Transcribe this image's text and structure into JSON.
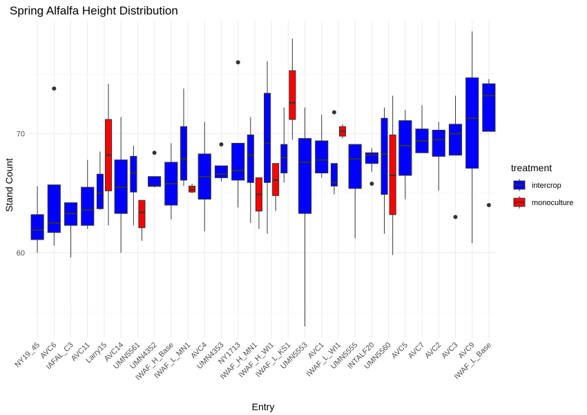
{
  "chart_data": {
    "type": "boxplot",
    "title": "Spring Alfalfa Height Distribution",
    "xlabel": "Entry",
    "ylabel": "Stand Count",
    "ylim": [
      52.8,
      79.5
    ],
    "yticks": [
      60,
      70
    ],
    "grid": true,
    "legend": {
      "title": "treatment",
      "position": "right",
      "entries": [
        {
          "name": "intercrop",
          "color": "#0000ff"
        },
        {
          "name": "monoculture",
          "color": "#ff0000"
        }
      ]
    },
    "categories": [
      "NY19_45",
      "AVC6",
      "IAFAL_C3",
      "AVC11",
      "Larry15",
      "AVC14",
      "UMN5561",
      "UMN4352",
      "IWAF_H_Base",
      "IWAF_L_MN1",
      "AVC4",
      "UMN4353",
      "NY1713",
      "IWAF_H_MN1",
      "IWAF_H_WI1",
      "IWAF_L_KS1",
      "UMN5553",
      "AVC1",
      "IWAF_L_WI1",
      "UMN5555",
      "INTALF20",
      "UMN5560",
      "AVC5",
      "AVC7",
      "AVC2",
      "AVC3",
      "AVC9",
      "IWAF_L_Base"
    ],
    "boxes": [
      {
        "entry": "NY19_45",
        "treatment": "intercrop",
        "pos": 1,
        "whisker_low": 60.0,
        "q1": 61.1,
        "median": 61.9,
        "q3": 63.2,
        "whisker_high": 65.6,
        "outliers": []
      },
      {
        "entry": "AVC6",
        "treatment": "intercrop",
        "pos": 2,
        "whisker_low": 60.6,
        "q1": 61.7,
        "median": 62.5,
        "q3": 65.7,
        "whisker_high": 65.7,
        "outliers": [
          73.8
        ]
      },
      {
        "entry": "IAFAL_C3",
        "treatment": "intercrop",
        "pos": 3,
        "whisker_low": 59.6,
        "q1": 62.3,
        "median": 63.3,
        "q3": 64.2,
        "whisker_high": 64.2,
        "outliers": []
      },
      {
        "entry": "AVC11",
        "treatment": "intercrop",
        "pos": 4,
        "whisker_low": 62.0,
        "q1": 62.3,
        "median": 63.6,
        "q3": 65.5,
        "whisker_high": 67.8,
        "outliers": []
      },
      {
        "entry": "Larry15",
        "treatment": "intercrop",
        "pos": 4.75,
        "whisker_low": 63.6,
        "q1": 63.7,
        "median": 65.0,
        "q3": 66.6,
        "whisker_high": 68.5,
        "outliers": []
      },
      {
        "entry": "Larry15",
        "treatment": "monoculture",
        "pos": 5.25,
        "whisker_low": 62.3,
        "q1": 65.2,
        "median": 68.2,
        "q3": 71.2,
        "whisker_high": 74.2,
        "outliers": []
      },
      {
        "entry": "AVC14",
        "treatment": "intercrop",
        "pos": 6,
        "whisker_low": 60.0,
        "q1": 63.3,
        "median": 65.5,
        "q3": 67.8,
        "whisker_high": 71.4,
        "outliers": []
      },
      {
        "entry": "UMN5561",
        "treatment": "intercrop",
        "pos": 6.75,
        "whisker_low": 62.3,
        "q1": 65.1,
        "median": 66.7,
        "q3": 68.1,
        "whisker_high": 69.0,
        "outliers": []
      },
      {
        "entry": "UMN5561",
        "treatment": "monoculture",
        "pos": 7.25,
        "whisker_low": 61.0,
        "q1": 62.1,
        "median": 63.4,
        "q3": 64.4,
        "whisker_high": 64.4,
        "outliers": []
      },
      {
        "entry": "UMN4352",
        "treatment": "intercrop",
        "pos": 8,
        "whisker_low": 65.5,
        "q1": 65.6,
        "median": 65.6,
        "q3": 66.4,
        "whisker_high": 66.4,
        "outliers": [
          68.4
        ]
      },
      {
        "entry": "IWAF_H_Base",
        "treatment": "intercrop",
        "pos": 9,
        "whisker_low": 62.8,
        "q1": 64.0,
        "median": 65.8,
        "q3": 67.6,
        "whisker_high": 69.2,
        "outliers": []
      },
      {
        "entry": "IWAF_L_MN1",
        "treatment": "intercrop",
        "pos": 9.75,
        "whisker_low": 65.6,
        "q1": 66.1,
        "median": 67.9,
        "q3": 70.6,
        "whisker_high": 73.8,
        "outliers": []
      },
      {
        "entry": "IWAF_L_MN1",
        "treatment": "monoculture",
        "pos": 10.25,
        "whisker_low": 65.0,
        "q1": 65.1,
        "median": 65.3,
        "q3": 65.6,
        "whisker_high": 65.8,
        "outliers": []
      },
      {
        "entry": "AVC4",
        "treatment": "intercrop",
        "pos": 11,
        "whisker_low": 61.8,
        "q1": 64.5,
        "median": 66.4,
        "q3": 68.3,
        "whisker_high": 71.0,
        "outliers": []
      },
      {
        "entry": "UMN4353",
        "treatment": "intercrop",
        "pos": 12,
        "whisker_low": 66.0,
        "q1": 66.3,
        "median": 66.6,
        "q3": 67.3,
        "whisker_high": 67.3,
        "outliers": [
          69.1
        ]
      },
      {
        "entry": "NY1713",
        "treatment": "intercrop",
        "pos": 13,
        "whisker_low": 63.8,
        "q1": 66.1,
        "median": 66.9,
        "q3": 69.2,
        "whisker_high": 69.2,
        "outliers": [
          76.0
        ]
      },
      {
        "entry": "IWAF_H_MN1",
        "treatment": "intercrop",
        "pos": 13.75,
        "whisker_low": 62.5,
        "q1": 65.9,
        "median": 68.2,
        "q3": 69.9,
        "whisker_high": 71.4,
        "outliers": []
      },
      {
        "entry": "IWAF_H_MN1",
        "treatment": "monoculture",
        "pos": 14.25,
        "whisker_low": 62.0,
        "q1": 63.5,
        "median": 64.9,
        "q3": 66.3,
        "whisker_high": 66.3,
        "outliers": []
      },
      {
        "entry": "IWAF_H_WI1",
        "treatment": "intercrop",
        "pos": 14.75,
        "whisker_low": 61.6,
        "q1": 65.9,
        "median": 69.2,
        "q3": 73.4,
        "whisker_high": 76.1,
        "outliers": []
      },
      {
        "entry": "IWAF_H_WI1",
        "treatment": "monoculture",
        "pos": 15.25,
        "whisker_low": 63.5,
        "q1": 64.8,
        "median": 66.1,
        "q3": 67.5,
        "whisker_high": 67.5,
        "outliers": []
      },
      {
        "entry": "IWAF_L_KS1",
        "treatment": "intercrop",
        "pos": 15.75,
        "whisker_low": 65.9,
        "q1": 66.7,
        "median": 68.0,
        "q3": 69.1,
        "whisker_high": 72.2,
        "outliers": []
      },
      {
        "entry": "IWAF_L_KS1",
        "treatment": "monoculture",
        "pos": 16.25,
        "whisker_low": 69.5,
        "q1": 71.2,
        "median": 72.6,
        "q3": 75.3,
        "whisker_high": 78.0,
        "outliers": []
      },
      {
        "entry": "UMN5553",
        "treatment": "intercrop",
        "pos": 17,
        "whisker_low": 53.8,
        "q1": 63.3,
        "median": 67.6,
        "q3": 69.6,
        "whisker_high": 72.2,
        "outliers": []
      },
      {
        "entry": "AVC1",
        "treatment": "intercrop",
        "pos": 18,
        "whisker_low": 66.3,
        "q1": 66.7,
        "median": 67.8,
        "q3": 69.4,
        "whisker_high": 71.6,
        "outliers": []
      },
      {
        "entry": "IWAF_L_WI1",
        "treatment": "intercrop",
        "pos": 18.75,
        "whisker_low": 64.9,
        "q1": 65.6,
        "median": 65.9,
        "q3": 67.5,
        "whisker_high": 67.5,
        "outliers": [
          71.8
        ]
      },
      {
        "entry": "IWAF_L_WI1",
        "treatment": "monoculture",
        "pos": 19.25,
        "whisker_low": 69.6,
        "q1": 69.8,
        "median": 70.2,
        "q3": 70.6,
        "whisker_high": 70.8,
        "outliers": []
      },
      {
        "entry": "UMN5555",
        "treatment": "intercrop",
        "pos": 20,
        "whisker_low": 61.2,
        "q1": 65.4,
        "median": 67.9,
        "q3": 69.1,
        "whisker_high": 69.1,
        "outliers": []
      },
      {
        "entry": "INTALF20",
        "treatment": "intercrop",
        "pos": 21,
        "whisker_low": 66.8,
        "q1": 67.5,
        "median": 68.2,
        "q3": 68.4,
        "whisker_high": 68.8,
        "outliers": [
          65.8
        ]
      },
      {
        "entry": "UMN5560",
        "treatment": "intercrop",
        "pos": 21.75,
        "whisker_low": 61.6,
        "q1": 64.9,
        "median": 68.3,
        "q3": 71.3,
        "whisker_high": 72.2,
        "outliers": []
      },
      {
        "entry": "UMN5560",
        "treatment": "monoculture",
        "pos": 22.25,
        "whisker_low": 59.8,
        "q1": 63.2,
        "median": 66.5,
        "q3": 69.9,
        "whisker_high": 73.2,
        "outliers": []
      },
      {
        "entry": "AVC5",
        "treatment": "intercrop",
        "pos": 23,
        "whisker_low": 64.5,
        "q1": 66.5,
        "median": 69.0,
        "q3": 71.1,
        "whisker_high": 72.0,
        "outliers": []
      },
      {
        "entry": "AVC7",
        "treatment": "intercrop",
        "pos": 24,
        "whisker_low": 68.4,
        "q1": 68.4,
        "median": 69.4,
        "q3": 70.4,
        "whisker_high": 72.4,
        "outliers": []
      },
      {
        "entry": "AVC2",
        "treatment": "intercrop",
        "pos": 25,
        "whisker_low": 65.2,
        "q1": 68.1,
        "median": 69.5,
        "q3": 70.3,
        "whisker_high": 71.0,
        "outliers": []
      },
      {
        "entry": "AVC3",
        "treatment": "intercrop",
        "pos": 26,
        "whisker_low": 68.2,
        "q1": 68.2,
        "median": 70.0,
        "q3": 70.8,
        "whisker_high": 73.2,
        "outliers": [
          63.0
        ]
      },
      {
        "entry": "AVC9",
        "treatment": "intercrop",
        "pos": 27,
        "whisker_low": 60.8,
        "q1": 67.1,
        "median": 71.3,
        "q3": 74.7,
        "whisker_high": 78.6,
        "outliers": []
      },
      {
        "entry": "IWAF_L_Base",
        "treatment": "intercrop",
        "pos": 28,
        "whisker_low": 70.2,
        "q1": 70.2,
        "median": 73.2,
        "q3": 74.2,
        "whisker_high": 74.6,
        "outliers": [
          64.0
        ]
      }
    ]
  }
}
